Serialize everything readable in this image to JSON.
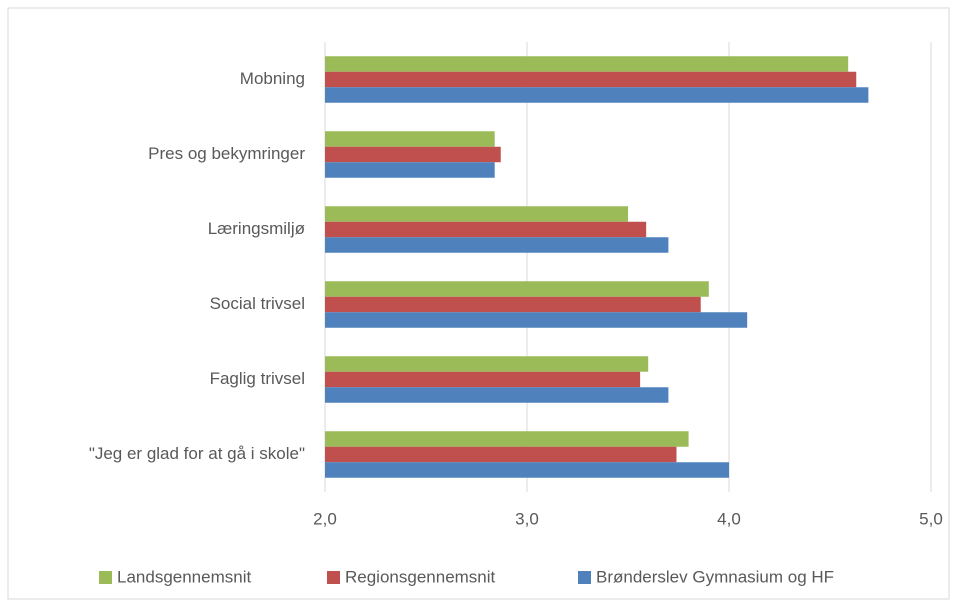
{
  "chart_data": {
    "type": "hbar",
    "categories": [
      "Mobning",
      "Pres og bekymringer",
      "Læringsmiljø",
      "Social trivsel",
      "Faglig trivsel",
      "\"Jeg er glad for at gå i skole\""
    ],
    "series": [
      {
        "name": "Landsgennemsnit",
        "color": "#9bbb59",
        "values": [
          4.59,
          2.84,
          3.5,
          3.9,
          3.6,
          3.8
        ]
      },
      {
        "name": "Regionsgennemsnit",
        "color": "#c0504d",
        "values": [
          4.63,
          2.87,
          3.59,
          3.86,
          3.56,
          3.74
        ]
      },
      {
        "name": "Brønderslev Gymnasium og HF",
        "color": "#4f81bd",
        "values": [
          4.69,
          2.84,
          3.7,
          4.09,
          3.7,
          4.0
        ]
      }
    ],
    "xlim": [
      2,
      5
    ],
    "xticks": [
      {
        "value": 2,
        "label": "2,0"
      },
      {
        "value": 3,
        "label": "3,0"
      },
      {
        "value": 4,
        "label": "4,0"
      },
      {
        "value": 5,
        "label": "5,0"
      }
    ],
    "grid": true,
    "legend": "bottom"
  }
}
